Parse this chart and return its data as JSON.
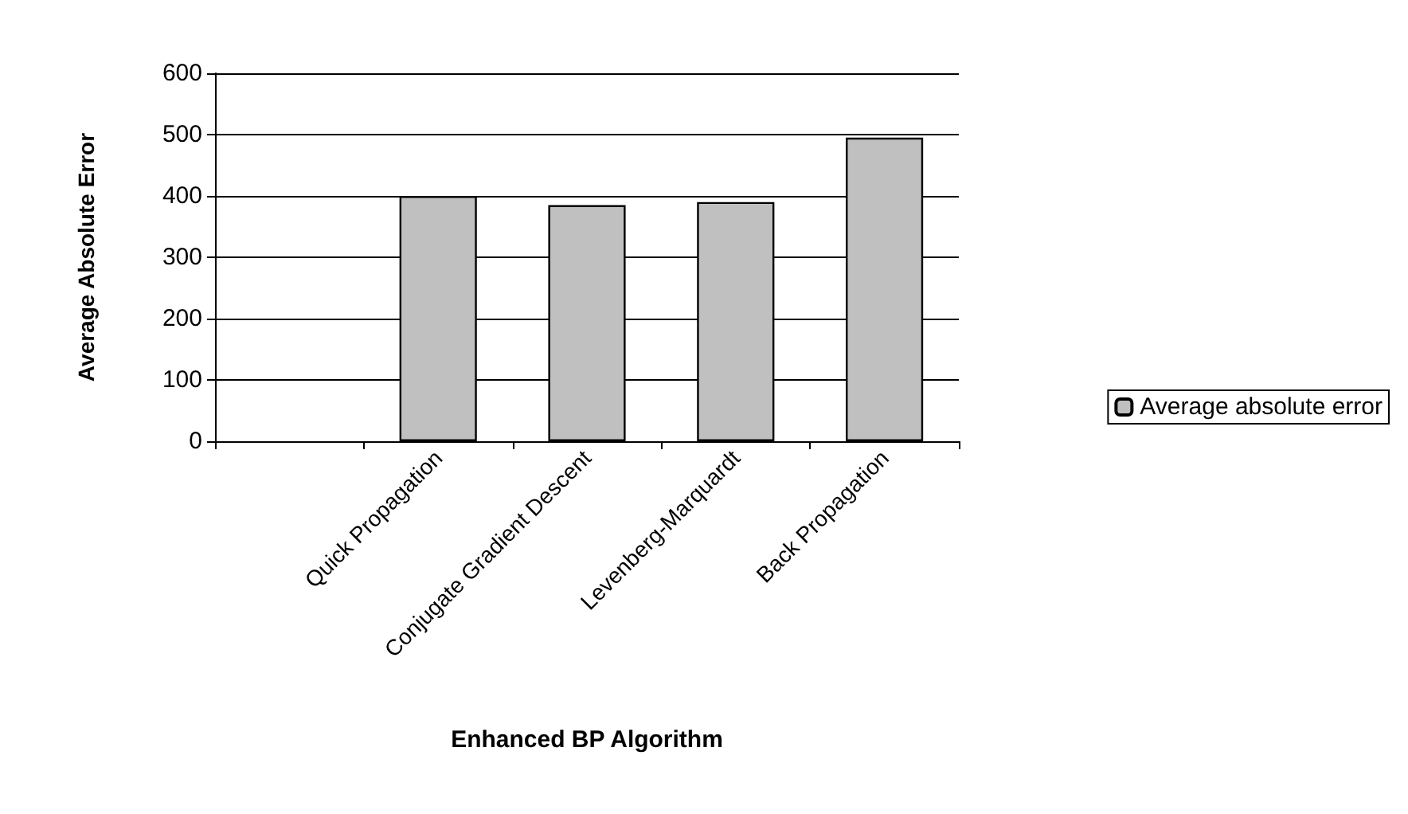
{
  "chart_data": {
    "type": "bar",
    "xlabel": "Enhanced BP Algorithm",
    "ylabel": "Average Absolute Error",
    "categories": [
      null,
      "Quick Propagation",
      "Conjugate Gradient Descent",
      "Levenberg-Marquardt",
      "Back Propagation"
    ],
    "series": [
      {
        "name": "Average absolute error",
        "color": "#c0c0c0",
        "values": [
          null,
          400,
          385,
          390,
          495
        ]
      }
    ],
    "ylim": [
      0,
      600
    ],
    "yticks": [
      0,
      100,
      200,
      300,
      400,
      500,
      600
    ],
    "grid": "y",
    "legend": "right"
  }
}
